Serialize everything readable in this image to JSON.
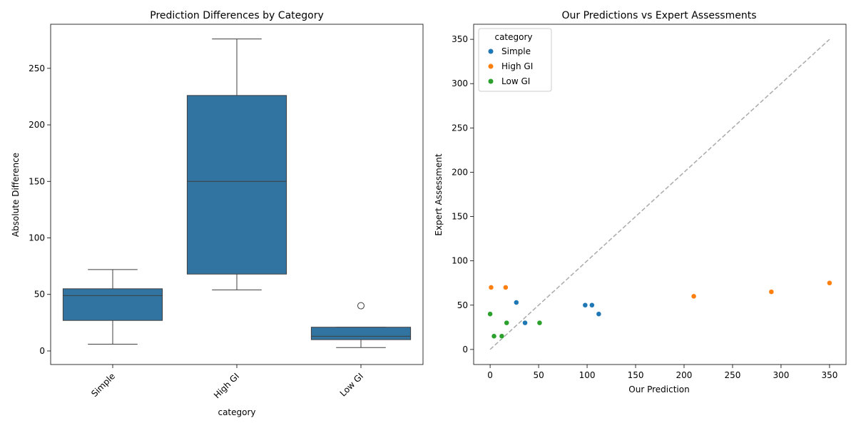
{
  "chart_data": [
    {
      "type": "box",
      "title": "Prediction Differences by Category",
      "xlabel": "category",
      "ylabel": "Absolute Difference",
      "categories": [
        "Simple",
        "High GI",
        "Low GI"
      ],
      "ylim": [
        -12,
        289
      ],
      "yticks": [
        0,
        50,
        100,
        150,
        200,
        250
      ],
      "color": "#3274a1",
      "boxes": [
        {
          "category": "Simple",
          "whislo": 6,
          "q1": 27,
          "med": 49,
          "q3": 55,
          "whishi": 72,
          "fliers": []
        },
        {
          "category": "High GI",
          "whislo": 54,
          "q1": 68,
          "med": 150,
          "q3": 226,
          "whishi": 276,
          "fliers": []
        },
        {
          "category": "Low GI",
          "whislo": 3,
          "q1": 10,
          "med": 13,
          "q3": 21,
          "whishi": 21,
          "fliers": [
            40
          ]
        }
      ]
    },
    {
      "type": "scatter",
      "title": "Our Predictions vs Expert Assessments",
      "xlabel": "Our Prediction",
      "ylabel": "Expert Assessment",
      "xlim": [
        -17,
        367
      ],
      "ylim": [
        -17,
        367
      ],
      "xticks": [
        0,
        50,
        100,
        150,
        200,
        250,
        300,
        350
      ],
      "yticks": [
        0,
        50,
        100,
        150,
        200,
        250,
        300,
        350
      ],
      "legend_title": "category",
      "legend_position": "top-left",
      "series": [
        {
          "name": "Simple",
          "color": "#1f77b4",
          "points": [
            [
              27,
              53
            ],
            [
              36,
              30
            ],
            [
              98,
              50
            ],
            [
              105,
              50
            ],
            [
              112,
              40
            ]
          ]
        },
        {
          "name": "High GI",
          "color": "#ff7f0e",
          "points": [
            [
              1,
              70
            ],
            [
              16,
              70
            ],
            [
              210,
              60
            ],
            [
              290,
              65
            ],
            [
              350,
              75
            ]
          ]
        },
        {
          "name": "Low GI",
          "color": "#2ca02c",
          "points": [
            [
              0,
              40
            ],
            [
              4,
              15
            ],
            [
              12,
              15
            ],
            [
              17,
              30
            ],
            [
              51,
              30
            ]
          ]
        }
      ],
      "reference_line": {
        "from": [
          0,
          0
        ],
        "to": [
          350,
          350
        ],
        "color": "#aaaaaa",
        "style": "dashed"
      }
    }
  ]
}
